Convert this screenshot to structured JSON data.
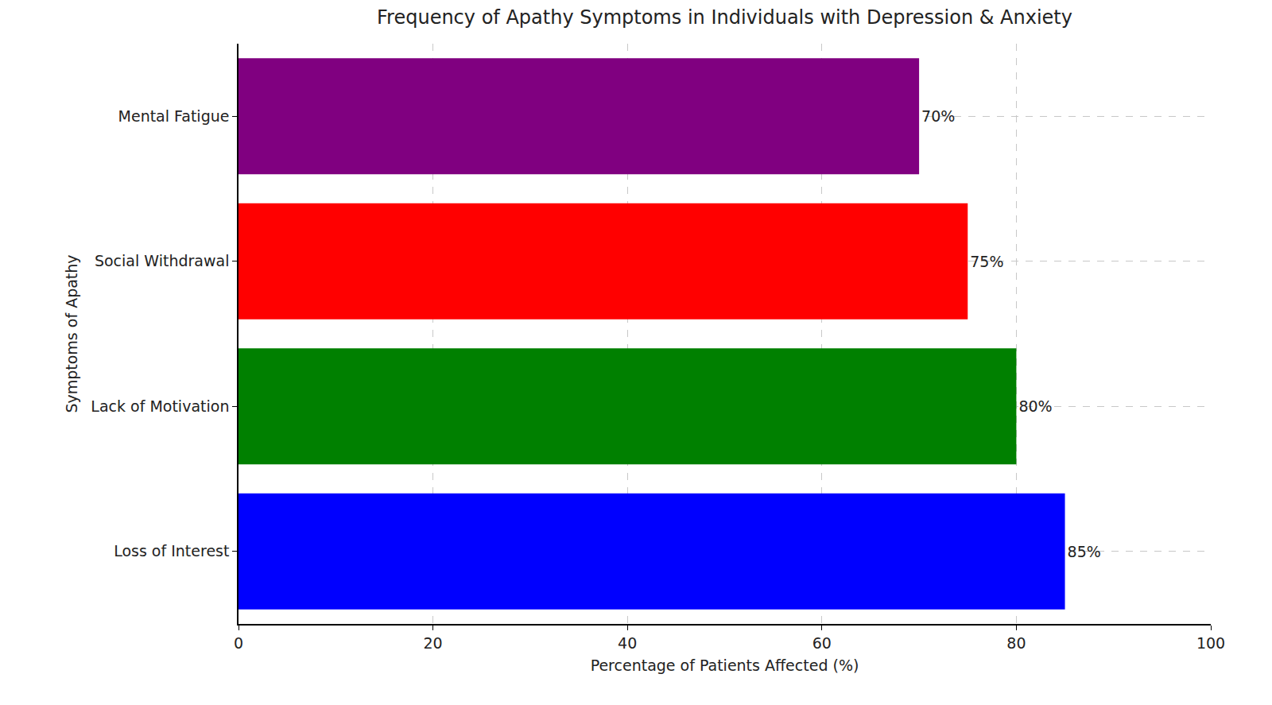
{
  "chart_data": {
    "type": "bar",
    "orientation": "horizontal",
    "title": "Frequency of Apathy Symptoms in Individuals with Depression & Anxiety",
    "x_label": "Percentage of Patients Affected (%)",
    "y_label": "Symptoms of Apathy",
    "categories": [
      "Loss of Interest",
      "Lack of Motivation",
      "Social Withdrawal",
      "Mental Fatigue"
    ],
    "values": [
      85,
      80,
      75,
      70
    ],
    "value_labels": [
      "85%",
      "80%",
      "75%",
      "70%"
    ],
    "colors": [
      "#0000ff",
      "#008000",
      "#ff0000",
      "#800080"
    ],
    "xlim": [
      0,
      100
    ],
    "xticks": [
      0,
      20,
      40,
      60,
      80,
      100
    ],
    "grid": true,
    "data_labels": true
  }
}
